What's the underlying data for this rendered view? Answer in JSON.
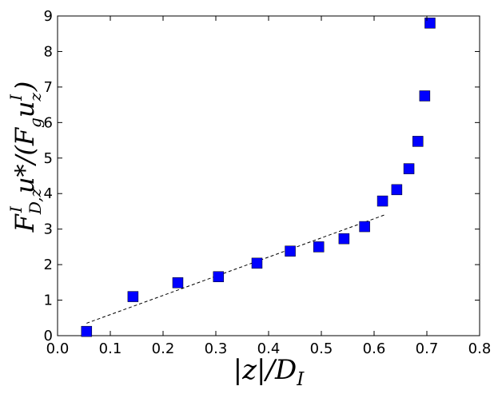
{
  "chart_data": {
    "type": "scatter",
    "title": "",
    "xlabel": "|z|/D_I",
    "ylabel": "F^I_{D,z} u* / (F_g u^I_z)",
    "xlim": [
      0.0,
      0.8
    ],
    "ylim": [
      0,
      9
    ],
    "x_ticks": [
      "0.0",
      "0.1",
      "0.2",
      "0.3",
      "0.4",
      "0.5",
      "0.6",
      "0.7",
      "0.8"
    ],
    "y_ticks": [
      "0",
      "1",
      "2",
      "3",
      "4",
      "5",
      "6",
      "7",
      "8",
      "9"
    ],
    "grid": false,
    "series": [
      {
        "marker": "square",
        "color": "#0000ff",
        "x": [
          0.055,
          0.143,
          0.228,
          0.305,
          0.378,
          0.441,
          0.495,
          0.543,
          0.582,
          0.616,
          0.643,
          0.666,
          0.683,
          0.696,
          0.706
        ],
        "y": [
          0.12,
          1.1,
          1.49,
          1.66,
          2.04,
          2.38,
          2.5,
          2.73,
          3.07,
          3.79,
          4.11,
          4.7,
          5.47,
          6.75,
          8.8
        ]
      }
    ],
    "fit_line": {
      "style": "dashed",
      "color": "#000000",
      "x": [
        0.055,
        0.62
      ],
      "y": [
        0.35,
        3.4
      ]
    }
  }
}
